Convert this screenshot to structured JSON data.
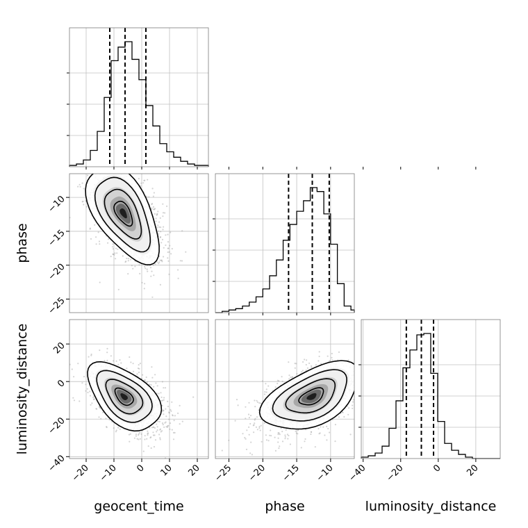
{
  "chart_data": {
    "type": "corner",
    "parameters": [
      "geocent_time",
      "phase",
      "luminosity_distance"
    ],
    "axis_labels": {
      "geocent_time": "geocent_time",
      "phase": "phase",
      "luminosity_distance": "luminosity_distance"
    },
    "ranges": {
      "geocent_time": [
        -26,
        24
      ],
      "phase": [
        -27,
        -6.5
      ],
      "luminosity_distance": [
        -41,
        33
      ]
    },
    "ticks": {
      "geocent_time": [
        -20,
        -10,
        0,
        10,
        20
      ],
      "phase": [
        -25,
        -20,
        -15,
        -10
      ],
      "luminosity_distance": [
        -40,
        -20,
        0,
        20
      ]
    },
    "tick_labels": {
      "geocent_time": [
        "−20",
        "−10",
        "0",
        "10",
        "20"
      ],
      "phase": [
        "−25",
        "−20",
        "−15",
        "−10"
      ],
      "luminosity_distance": [
        "−40",
        "−20",
        "0",
        "20"
      ]
    },
    "grid": true,
    "histograms": {
      "geocent_time": {
        "quantiles": [
          -11.5,
          -6.0,
          1.5
        ],
        "bin_edges": [
          -26,
          -23.5,
          -21,
          -18.5,
          -16,
          -13.5,
          -11,
          -8.5,
          -6,
          -3.5,
          -1,
          1.5,
          4,
          6.5,
          9,
          11.5,
          14,
          16.5,
          19,
          21.5,
          24
        ],
        "counts": [
          0.01,
          0.02,
          0.05,
          0.12,
          0.26,
          0.51,
          0.78,
          0.88,
          0.92,
          0.79,
          0.64,
          0.45,
          0.3,
          0.17,
          0.11,
          0.07,
          0.04,
          0.02,
          0.01,
          0.01
        ]
      },
      "phase": {
        "quantiles": [
          -16.2,
          -12.7,
          -10.2
        ],
        "bin_edges": [
          -27,
          -26,
          -25,
          -24,
          -23,
          -22,
          -21,
          -20,
          -19,
          -18,
          -17,
          -16,
          -15,
          -14,
          -13,
          -12,
          -11,
          -10,
          -9,
          -8,
          -7,
          -6.5
        ],
        "counts": [
          0.0,
          0.01,
          0.02,
          0.03,
          0.05,
          0.08,
          0.12,
          0.18,
          0.28,
          0.4,
          0.55,
          0.67,
          0.77,
          0.85,
          0.95,
          0.92,
          0.75,
          0.52,
          0.22,
          0.05,
          0.02
        ]
      },
      "luminosity_distance": {
        "quantiles": [
          -17.0,
          -9.0,
          -2.5
        ],
        "bin_edges": [
          -41,
          -37.3,
          -33.6,
          -29.9,
          -26.2,
          -22.5,
          -18.8,
          -15.1,
          -11.4,
          -7.7,
          -4.0,
          -0.3,
          3.4,
          7.1,
          10.8,
          14.5,
          18.2,
          21.9,
          25.6,
          29.3,
          33
        ],
        "counts": [
          0.01,
          0.02,
          0.04,
          0.09,
          0.22,
          0.42,
          0.66,
          0.79,
          0.9,
          0.91,
          0.62,
          0.27,
          0.11,
          0.06,
          0.03,
          0.01,
          0.0,
          0.0,
          0.0,
          0.0
        ]
      }
    },
    "scatter_distributions": [
      {
        "x": "geocent_time",
        "y": "phase",
        "mean": [
          -5.0,
          -13.0
        ],
        "std": [
          6.5,
          3.6
        ],
        "correlation": -0.55,
        "density_peak": [
          -8.5,
          -11.5
        ]
      },
      {
        "x": "geocent_time",
        "y": "luminosity_distance",
        "mean": [
          -5.0,
          -9.0
        ],
        "std": [
          6.5,
          9.0
        ],
        "correlation": -0.5,
        "density_peak": [
          -8.0,
          -7.0
        ]
      },
      {
        "x": "phase",
        "y": "luminosity_distance",
        "mean": [
          -13.0,
          -9.0
        ],
        "std": [
          3.6,
          9.0
        ],
        "correlation": 0.5,
        "density_peak": [
          -12.5,
          -7.0
        ]
      }
    ],
    "colors": {
      "line": "#000000",
      "scatter": "#a0a0a0",
      "grid": "#c0c0c0",
      "frame": "#7a7a7a"
    }
  }
}
